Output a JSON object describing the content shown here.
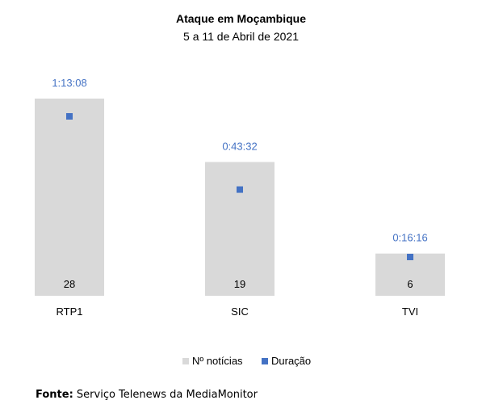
{
  "chart_data": {
    "type": "bar",
    "title": "Ataque em Moçambique",
    "subtitle": "5 a 11 de Abril de 2021",
    "categories": [
      "RTP1",
      "SIC",
      "TVI"
    ],
    "series": [
      {
        "name": "Nº notícias",
        "kind": "bar",
        "values": [
          28,
          19,
          6
        ],
        "labels": [
          "28",
          "19",
          "6"
        ],
        "color": "#d9d9d9"
      },
      {
        "name": "Duração",
        "kind": "point",
        "values": [
          73.13,
          43.53,
          16.27
        ],
        "labels": [
          "1:13:08",
          "0:43:32",
          "0:16:16"
        ],
        "color": "#4472c4"
      }
    ],
    "legend": "bottom",
    "grid": false
  },
  "source": {
    "label": "Fonte:",
    "text": "Serviço Telenews da MediaMonitor"
  }
}
